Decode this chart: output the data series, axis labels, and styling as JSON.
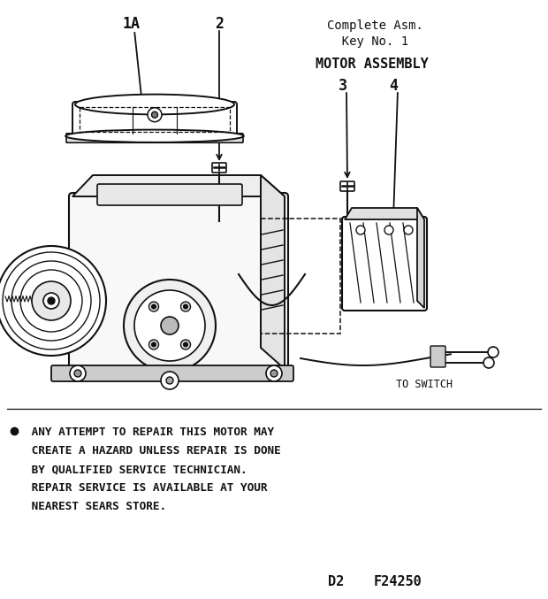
{
  "bg_color": "#ffffff",
  "text_color": "#111111",
  "title_line1": "Complete Asm.",
  "title_line2": "  Key No. 1",
  "subtitle": "MOTOR ASSEMBLY",
  "label_1A": "1A",
  "label_2": "2",
  "label_3": "3",
  "label_4": "4",
  "to_switch": "TO SWITCH",
  "warning_bullet": "●",
  "warning_bold1": " ANY ATTEMPT TO REPAIR THIS MOTOR MAY",
  "warning_bold2": " CREATE A HAZARD UNLESS REPAIR IS DONE",
  "warning_bold3": " BY QUALIFIED SERVICE TECHNICIAN.",
  "warning_reg1": " REPAIR SERVICE IS AVAILABLE AT YOUR",
  "warning_reg2": " NEAREST SEARS STORE.",
  "footer_left": "D2",
  "footer_right": "F24250",
  "fig_width": 6.2,
  "fig_height": 6.77,
  "dpi": 100
}
